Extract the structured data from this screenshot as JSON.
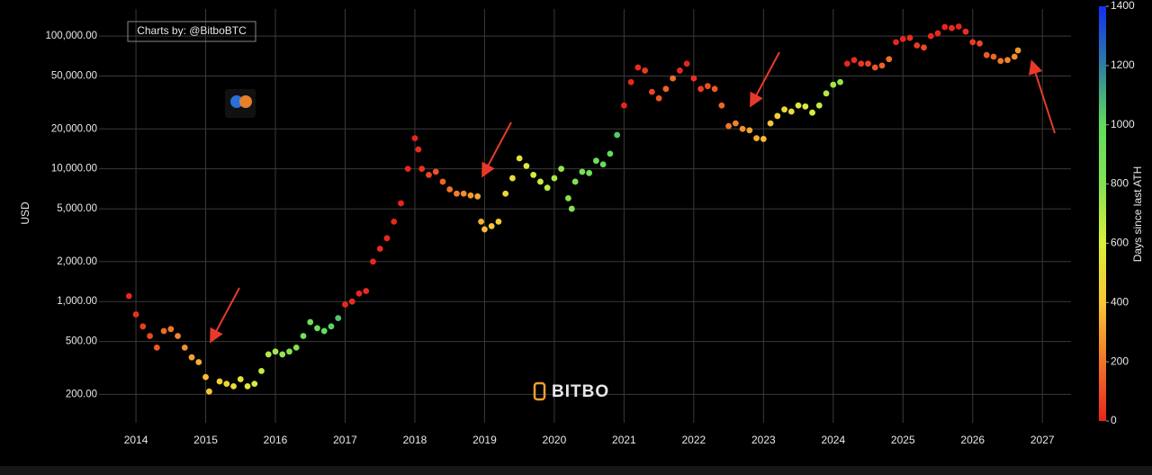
{
  "chart_data": {
    "type": "scatter",
    "credit": "Charts by: @BitboBTC",
    "watermark": "BITBO",
    "ylabel": "USD",
    "ylog": true,
    "grid": true,
    "x": [
      2013.9,
      2014.0,
      2014.1,
      2014.2,
      2014.3,
      2014.4,
      2014.5,
      2014.6,
      2014.7,
      2014.8,
      2014.9,
      2015.0,
      2015.05,
      2015.2,
      2015.3,
      2015.4,
      2015.5,
      2015.6,
      2015.7,
      2015.8,
      2015.9,
      2016.0,
      2016.1,
      2016.2,
      2016.3,
      2016.4,
      2016.5,
      2016.6,
      2016.7,
      2016.8,
      2016.9,
      2017.0,
      2017.1,
      2017.2,
      2017.3,
      2017.4,
      2017.5,
      2017.6,
      2017.7,
      2017.8,
      2017.9,
      2018.0,
      2018.05,
      2018.1,
      2018.2,
      2018.3,
      2018.4,
      2018.5,
      2018.6,
      2018.7,
      2018.8,
      2018.9,
      2018.95,
      2019.0,
      2019.1,
      2019.2,
      2019.3,
      2019.4,
      2019.5,
      2019.6,
      2019.7,
      2019.8,
      2019.9,
      2020.0,
      2020.1,
      2020.2,
      2020.25,
      2020.3,
      2020.4,
      2020.5,
      2020.6,
      2020.7,
      2020.8,
      2020.9,
      2021.0,
      2021.1,
      2021.2,
      2021.3,
      2021.4,
      2021.5,
      2021.6,
      2021.7,
      2021.8,
      2021.9,
      2022.0,
      2022.1,
      2022.2,
      2022.3,
      2022.4,
      2022.5,
      2022.6,
      2022.7,
      2022.8,
      2022.9,
      2023.0,
      2023.1,
      2023.2,
      2023.3,
      2023.4,
      2023.5,
      2023.6,
      2023.7,
      2023.8,
      2023.9,
      2024.0,
      2024.1,
      2024.2,
      2024.3,
      2024.4,
      2024.5,
      2024.6,
      2024.7,
      2024.8,
      2024.9,
      2025.0,
      2025.1,
      2025.2,
      2025.3,
      2025.4,
      2025.5,
      2025.6,
      2025.7,
      2025.8,
      2025.9,
      2026.0,
      2026.1,
      2026.2,
      2026.3,
      2026.4,
      2026.5,
      2026.6,
      2026.65
    ],
    "values": [
      1100,
      800,
      650,
      550,
      450,
      600,
      620,
      550,
      450,
      380,
      350,
      270,
      210,
      250,
      240,
      230,
      260,
      230,
      240,
      300,
      400,
      420,
      400,
      420,
      450,
      550,
      700,
      630,
      600,
      650,
      750,
      950,
      1000,
      1150,
      1200,
      2000,
      2500,
      3000,
      4000,
      5500,
      10000,
      17000,
      14000,
      10000,
      9000,
      9500,
      8000,
      7000,
      6500,
      6500,
      6300,
      6200,
      4000,
      3500,
      3700,
      4000,
      6500,
      8500,
      12000,
      10500,
      9000,
      8000,
      7200,
      8500,
      10000,
      6000,
      5000,
      8000,
      9500,
      9300,
      11500,
      10800,
      13000,
      18000,
      30000,
      45000,
      58000,
      55000,
      38000,
      34000,
      40000,
      48000,
      55000,
      62000,
      48000,
      40000,
      42000,
      40000,
      30000,
      21000,
      22000,
      20000,
      19500,
      17000,
      16800,
      22000,
      25000,
      28000,
      27000,
      30000,
      29500,
      26500,
      30000,
      37000,
      43000,
      45000,
      62000,
      66000,
      62000,
      62000,
      58000,
      60000,
      67000,
      90000,
      95000,
      97000,
      85000,
      82000,
      100000,
      105000,
      117000,
      115000,
      118000,
      108000,
      90000,
      88000,
      72000,
      70000,
      65000,
      66000,
      70000,
      78000
    ],
    "days_since_ath": [
      0,
      30,
      60,
      90,
      130,
      170,
      200,
      240,
      270,
      310,
      340,
      380,
      400,
      440,
      480,
      510,
      550,
      580,
      620,
      660,
      700,
      730,
      760,
      800,
      840,
      870,
      910,
      950,
      980,
      1020,
      1050,
      10,
      20,
      10,
      20,
      5,
      20,
      10,
      10,
      5,
      5,
      0,
      20,
      40,
      80,
      110,
      150,
      190,
      220,
      260,
      290,
      320,
      340,
      370,
      400,
      430,
      470,
      500,
      540,
      570,
      610,
      650,
      680,
      720,
      760,
      790,
      800,
      820,
      860,
      900,
      940,
      970,
      1000,
      1040,
      0,
      10,
      20,
      50,
      80,
      120,
      150,
      180,
      10,
      0,
      30,
      60,
      100,
      130,
      160,
      200,
      230,
      270,
      310,
      340,
      370,
      400,
      440,
      480,
      510,
      550,
      590,
      620,
      660,
      700,
      730,
      770,
      0,
      20,
      50,
      80,
      120,
      150,
      190,
      0,
      10,
      20,
      60,
      90,
      10,
      10,
      0,
      20,
      0,
      30,
      60,
      90,
      130,
      160,
      200,
      230,
      260,
      280
    ],
    "xlim": [
      2013.47,
      2027.41
    ],
    "xticks": [
      2014,
      2015,
      2016,
      2017,
      2018,
      2019,
      2020,
      2021,
      2022,
      2023,
      2024,
      2025,
      2026,
      2027
    ],
    "ylim": [
      122,
      160000
    ],
    "yticks": [
      {
        "value": 200,
        "label": "200.00"
      },
      {
        "value": 500,
        "label": "500.00"
      },
      {
        "value": 1000,
        "label": "1,000.00"
      },
      {
        "value": 2000,
        "label": "2,000.00"
      },
      {
        "value": 5000,
        "label": "5,000.00"
      },
      {
        "value": 10000,
        "label": "10,000.00"
      },
      {
        "value": 20000,
        "label": "20,000.00"
      },
      {
        "value": 50000,
        "label": "50,000.00"
      },
      {
        "value": 100000,
        "label": "100,000.00"
      }
    ],
    "colorbar": {
      "label": "Days since last ATH",
      "lim": [
        0,
        1400
      ],
      "ticks": [
        0,
        200,
        400,
        600,
        800,
        1000,
        1200,
        1400
      ],
      "colors": [
        "#e8241c",
        "#f0752a",
        "#f7c634",
        "#dcef3a",
        "#84e253",
        "#5fdc5c",
        "#2f7ea0",
        "#1030f0"
      ]
    }
  }
}
